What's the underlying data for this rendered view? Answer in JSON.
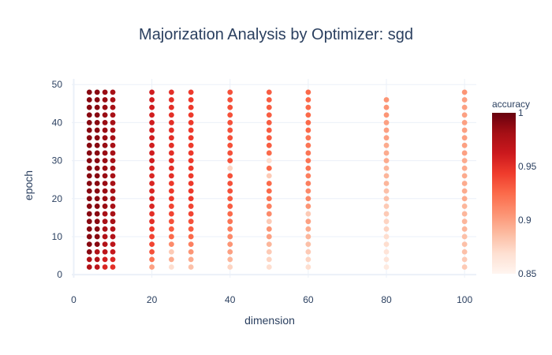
{
  "chart_data": {
    "type": "scatter",
    "title": "Majorization Analysis by Optimizer: sgd",
    "xlabel": "dimension",
    "ylabel": "epoch",
    "xlim": [
      -0.5,
      103
    ],
    "ylim": [
      -0.8,
      51.5
    ],
    "x_ticks": [
      0,
      20,
      40,
      60,
      80,
      100
    ],
    "y_ticks": [
      0,
      10,
      20,
      30,
      40,
      50
    ],
    "grid": true,
    "colorbar": {
      "title": "accuracy",
      "range": [
        0.85,
        1.0
      ],
      "ticks": [
        0.85,
        0.9,
        0.95,
        1
      ],
      "tick_labels": [
        "0.85",
        "0.9",
        "0.95",
        "1"
      ],
      "colorscale": "Reds"
    },
    "series": [
      {
        "x": 4,
        "points": [
          [
            2,
            0.975
          ],
          [
            4,
            0.975
          ],
          [
            6,
            0.99
          ],
          [
            8,
            0.99
          ],
          [
            10,
            0.99
          ],
          [
            12,
            0.99
          ],
          [
            14,
            0.99
          ],
          [
            16,
            0.99
          ],
          [
            18,
            0.99
          ],
          [
            20,
            0.99
          ],
          [
            22,
            0.99
          ],
          [
            24,
            0.99
          ],
          [
            26,
            0.99
          ],
          [
            28,
            0.99
          ],
          [
            30,
            0.99
          ],
          [
            32,
            0.99
          ],
          [
            34,
            0.99
          ],
          [
            36,
            0.99
          ],
          [
            38,
            0.99
          ],
          [
            40,
            0.99
          ],
          [
            42,
            0.99
          ],
          [
            44,
            0.99
          ],
          [
            46,
            0.99
          ],
          [
            48,
            0.99
          ]
        ]
      },
      {
        "x": 6,
        "points": [
          [
            2,
            0.97
          ],
          [
            4,
            0.975
          ],
          [
            6,
            0.975
          ],
          [
            8,
            0.99
          ],
          [
            10,
            0.99
          ],
          [
            12,
            0.99
          ],
          [
            14,
            0.99
          ],
          [
            16,
            0.99
          ],
          [
            18,
            0.99
          ],
          [
            20,
            0.99
          ],
          [
            22,
            0.99
          ],
          [
            24,
            0.99
          ],
          [
            26,
            0.99
          ],
          [
            28,
            0.99
          ],
          [
            30,
            0.99
          ],
          [
            32,
            0.99
          ],
          [
            34,
            0.99
          ],
          [
            36,
            0.99
          ],
          [
            38,
            0.99
          ],
          [
            40,
            0.99
          ],
          [
            42,
            0.99
          ],
          [
            44,
            0.99
          ],
          [
            46,
            0.99
          ],
          [
            48,
            0.99
          ]
        ]
      },
      {
        "x": 8,
        "points": [
          [
            2,
            0.955
          ],
          [
            4,
            0.96
          ],
          [
            6,
            0.97
          ],
          [
            8,
            0.975
          ],
          [
            10,
            0.975
          ],
          [
            12,
            0.98
          ],
          [
            14,
            0.98
          ],
          [
            16,
            0.98
          ],
          [
            18,
            0.985
          ],
          [
            20,
            0.985
          ],
          [
            22,
            0.985
          ],
          [
            24,
            0.985
          ],
          [
            26,
            0.985
          ],
          [
            28,
            0.985
          ],
          [
            30,
            0.985
          ],
          [
            32,
            0.985
          ],
          [
            34,
            0.985
          ],
          [
            36,
            0.985
          ],
          [
            38,
            0.985
          ],
          [
            40,
            0.985
          ],
          [
            42,
            0.985
          ],
          [
            44,
            0.985
          ],
          [
            46,
            0.985
          ],
          [
            48,
            0.985
          ]
        ]
      },
      {
        "x": 10,
        "points": [
          [
            2,
            0.95
          ],
          [
            4,
            0.955
          ],
          [
            6,
            0.965
          ],
          [
            8,
            0.97
          ],
          [
            10,
            0.975
          ],
          [
            12,
            0.975
          ],
          [
            14,
            0.98
          ],
          [
            16,
            0.98
          ],
          [
            18,
            0.98
          ],
          [
            20,
            0.98
          ],
          [
            22,
            0.98
          ],
          [
            24,
            0.98
          ],
          [
            26,
            0.98
          ],
          [
            28,
            0.98
          ],
          [
            30,
            0.98
          ],
          [
            32,
            0.98
          ],
          [
            34,
            0.98
          ],
          [
            36,
            0.98
          ],
          [
            38,
            0.98
          ],
          [
            40,
            0.98
          ],
          [
            42,
            0.98
          ],
          [
            44,
            0.98
          ],
          [
            46,
            0.98
          ],
          [
            48,
            0.98
          ]
        ]
      },
      {
        "x": 20,
        "points": [
          [
            2,
            0.9
          ],
          [
            4,
            0.92
          ],
          [
            6,
            0.935
          ],
          [
            8,
            0.94
          ],
          [
            10,
            0.94
          ],
          [
            12,
            0.945
          ],
          [
            14,
            0.95
          ],
          [
            16,
            0.95
          ],
          [
            18,
            0.955
          ],
          [
            20,
            0.955
          ],
          [
            22,
            0.955
          ],
          [
            24,
            0.955
          ],
          [
            26,
            0.955
          ],
          [
            28,
            0.955
          ],
          [
            30,
            0.96
          ],
          [
            32,
            0.96
          ],
          [
            34,
            0.96
          ],
          [
            36,
            0.96
          ],
          [
            38,
            0.96
          ],
          [
            40,
            0.96
          ],
          [
            42,
            0.96
          ],
          [
            44,
            0.96
          ],
          [
            46,
            0.96
          ],
          [
            48,
            0.96
          ]
        ]
      },
      {
        "x": 25,
        "points": [
          [
            2,
            0.87
          ],
          [
            4,
            0.895
          ],
          [
            6,
            0.88
          ],
          [
            8,
            0.91
          ],
          [
            10,
            0.925
          ],
          [
            12,
            0.93
          ],
          [
            14,
            0.935
          ],
          [
            16,
            0.94
          ],
          [
            18,
            0.94
          ],
          [
            20,
            0.945
          ],
          [
            22,
            0.945
          ],
          [
            24,
            0.945
          ],
          [
            26,
            0.95
          ],
          [
            28,
            0.95
          ],
          [
            30,
            0.95
          ],
          [
            32,
            0.95
          ],
          [
            34,
            0.95
          ],
          [
            36,
            0.95
          ],
          [
            38,
            0.95
          ],
          [
            40,
            0.95
          ],
          [
            42,
            0.95
          ],
          [
            44,
            0.95
          ],
          [
            46,
            0.95
          ],
          [
            48,
            0.95
          ]
        ]
      },
      {
        "x": 30,
        "points": [
          [
            2,
            0.885
          ],
          [
            4,
            0.895
          ],
          [
            6,
            0.905
          ],
          [
            8,
            0.915
          ],
          [
            10,
            0.925
          ],
          [
            12,
            0.93
          ],
          [
            14,
            0.935
          ],
          [
            16,
            0.94
          ],
          [
            18,
            0.94
          ],
          [
            20,
            0.945
          ],
          [
            22,
            0.945
          ],
          [
            24,
            0.945
          ],
          [
            26,
            0.945
          ],
          [
            28,
            0.945
          ],
          [
            30,
            0.945
          ],
          [
            32,
            0.945
          ],
          [
            34,
            0.945
          ],
          [
            36,
            0.945
          ],
          [
            38,
            0.945
          ],
          [
            40,
            0.945
          ],
          [
            42,
            0.945
          ],
          [
            44,
            0.945
          ],
          [
            46,
            0.945
          ],
          [
            48,
            0.945
          ]
        ]
      },
      {
        "x": 40,
        "points": [
          [
            2,
            0.875
          ],
          [
            4,
            0.89
          ],
          [
            6,
            0.9
          ],
          [
            8,
            0.905
          ],
          [
            10,
            0.91
          ],
          [
            12,
            0.915
          ],
          [
            14,
            0.92
          ],
          [
            16,
            0.925
          ],
          [
            18,
            0.93
          ],
          [
            20,
            0.93
          ],
          [
            22,
            0.935
          ],
          [
            24,
            0.935
          ],
          [
            26,
            0.935
          ],
          [
            28,
            0.875
          ],
          [
            30,
            0.935
          ],
          [
            32,
            0.935
          ],
          [
            34,
            0.935
          ],
          [
            36,
            0.935
          ],
          [
            38,
            0.935
          ],
          [
            40,
            0.935
          ],
          [
            42,
            0.935
          ],
          [
            44,
            0.935
          ],
          [
            46,
            0.935
          ],
          [
            48,
            0.935
          ]
        ]
      },
      {
        "x": 50,
        "points": [
          [
            2,
            0.87
          ],
          [
            4,
            0.875
          ],
          [
            6,
            0.88
          ],
          [
            8,
            0.89
          ],
          [
            10,
            0.9
          ],
          [
            12,
            0.905
          ],
          [
            14,
            0.88
          ],
          [
            16,
            0.91
          ],
          [
            18,
            0.915
          ],
          [
            20,
            0.92
          ],
          [
            22,
            0.925
          ],
          [
            24,
            0.925
          ],
          [
            26,
            0.88
          ],
          [
            28,
            0.925
          ],
          [
            30,
            0.87
          ],
          [
            32,
            0.925
          ],
          [
            34,
            0.93
          ],
          [
            36,
            0.93
          ],
          [
            38,
            0.93
          ],
          [
            40,
            0.93
          ],
          [
            42,
            0.93
          ],
          [
            44,
            0.93
          ],
          [
            46,
            0.93
          ],
          [
            48,
            0.93
          ]
        ]
      },
      {
        "x": 60,
        "points": [
          [
            2,
            0.87
          ],
          [
            4,
            0.875
          ],
          [
            6,
            0.88
          ],
          [
            8,
            0.885
          ],
          [
            10,
            0.89
          ],
          [
            12,
            0.895
          ],
          [
            14,
            0.9
          ],
          [
            16,
            0.88
          ],
          [
            18,
            0.905
          ],
          [
            20,
            0.91
          ],
          [
            22,
            0.91
          ],
          [
            24,
            0.915
          ],
          [
            26,
            0.915
          ],
          [
            28,
            0.92
          ],
          [
            30,
            0.92
          ],
          [
            32,
            0.92
          ],
          [
            34,
            0.92
          ],
          [
            36,
            0.92
          ],
          [
            38,
            0.925
          ],
          [
            40,
            0.925
          ],
          [
            42,
            0.925
          ],
          [
            44,
            0.925
          ],
          [
            46,
            0.925
          ],
          [
            48,
            0.925
          ]
        ]
      },
      {
        "x": 80,
        "points": [
          [
            2,
            0.86
          ],
          [
            4,
            0.865
          ],
          [
            6,
            0.865
          ],
          [
            8,
            0.87
          ],
          [
            10,
            0.87
          ],
          [
            12,
            0.875
          ],
          [
            14,
            0.875
          ],
          [
            16,
            0.88
          ],
          [
            18,
            0.88
          ],
          [
            20,
            0.885
          ],
          [
            22,
            0.885
          ],
          [
            24,
            0.89
          ],
          [
            26,
            0.89
          ],
          [
            28,
            0.89
          ],
          [
            30,
            0.895
          ],
          [
            32,
            0.895
          ],
          [
            34,
            0.895
          ],
          [
            36,
            0.9
          ],
          [
            38,
            0.9
          ],
          [
            40,
            0.9
          ],
          [
            42,
            0.905
          ],
          [
            44,
            0.905
          ],
          [
            46,
            0.905
          ]
        ]
      },
      {
        "x": 100,
        "points": [
          [
            2,
            0.88
          ],
          [
            4,
            0.88
          ],
          [
            6,
            0.885
          ],
          [
            8,
            0.885
          ],
          [
            10,
            0.885
          ],
          [
            12,
            0.89
          ],
          [
            14,
            0.89
          ],
          [
            16,
            0.89
          ],
          [
            18,
            0.89
          ],
          [
            20,
            0.895
          ],
          [
            22,
            0.895
          ],
          [
            24,
            0.895
          ],
          [
            26,
            0.895
          ],
          [
            28,
            0.895
          ],
          [
            30,
            0.895
          ],
          [
            32,
            0.9
          ],
          [
            34,
            0.9
          ],
          [
            36,
            0.9
          ],
          [
            38,
            0.9
          ],
          [
            40,
            0.9
          ],
          [
            42,
            0.9
          ],
          [
            44,
            0.9
          ],
          [
            46,
            0.9
          ],
          [
            48,
            0.905
          ]
        ]
      }
    ]
  }
}
